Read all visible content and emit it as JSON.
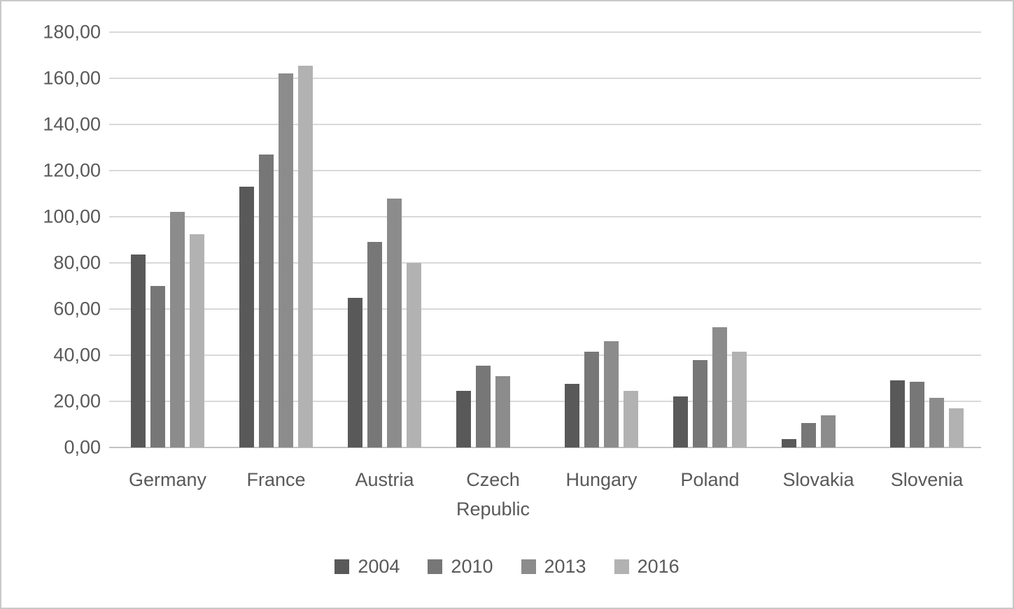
{
  "chart_data": {
    "type": "bar",
    "title": "",
    "categories": [
      "Germany",
      "France",
      "Austria",
      "Czech Republic",
      "Hungary",
      "Poland",
      "Slovakia",
      "Slovenia"
    ],
    "series": [
      {
        "name": "2004",
        "color": "#595959",
        "values": [
          83.5,
          113,
          65,
          24.5,
          27.5,
          22,
          3.5,
          29
        ]
      },
      {
        "name": "2010",
        "color": "#777777",
        "values": [
          70,
          127,
          89,
          35.5,
          41.5,
          38,
          10.5,
          28.5
        ]
      },
      {
        "name": "2013",
        "color": "#8c8c8c",
        "values": [
          102,
          162,
          108,
          31,
          46,
          52,
          14,
          21.5
        ]
      },
      {
        "name": "2016",
        "color": "#b2b2b2",
        "values": [
          92.5,
          165.5,
          80,
          null,
          24.5,
          41.5,
          null,
          17
        ]
      }
    ],
    "xlabel": "",
    "ylabel": "",
    "ylim": [
      0,
      180
    ],
    "ytick_step": 20,
    "ytick_labels": [
      "0,00",
      "20,00",
      "40,00",
      "60,00",
      "80,00",
      "100,00",
      "120,00",
      "140,00",
      "160,00",
      "180,00"
    ],
    "decimal_separator": ",",
    "grid": true,
    "legend_position": "bottom",
    "legend_entries": [
      "2004",
      "2010",
      "2013",
      "2016"
    ]
  },
  "style": {
    "text_color": "#595959",
    "gridline_color": "#d9d9d9",
    "baseline_color": "#c3c3c3",
    "background_color": "#ffffff",
    "border_color": "#c9c9c9"
  }
}
